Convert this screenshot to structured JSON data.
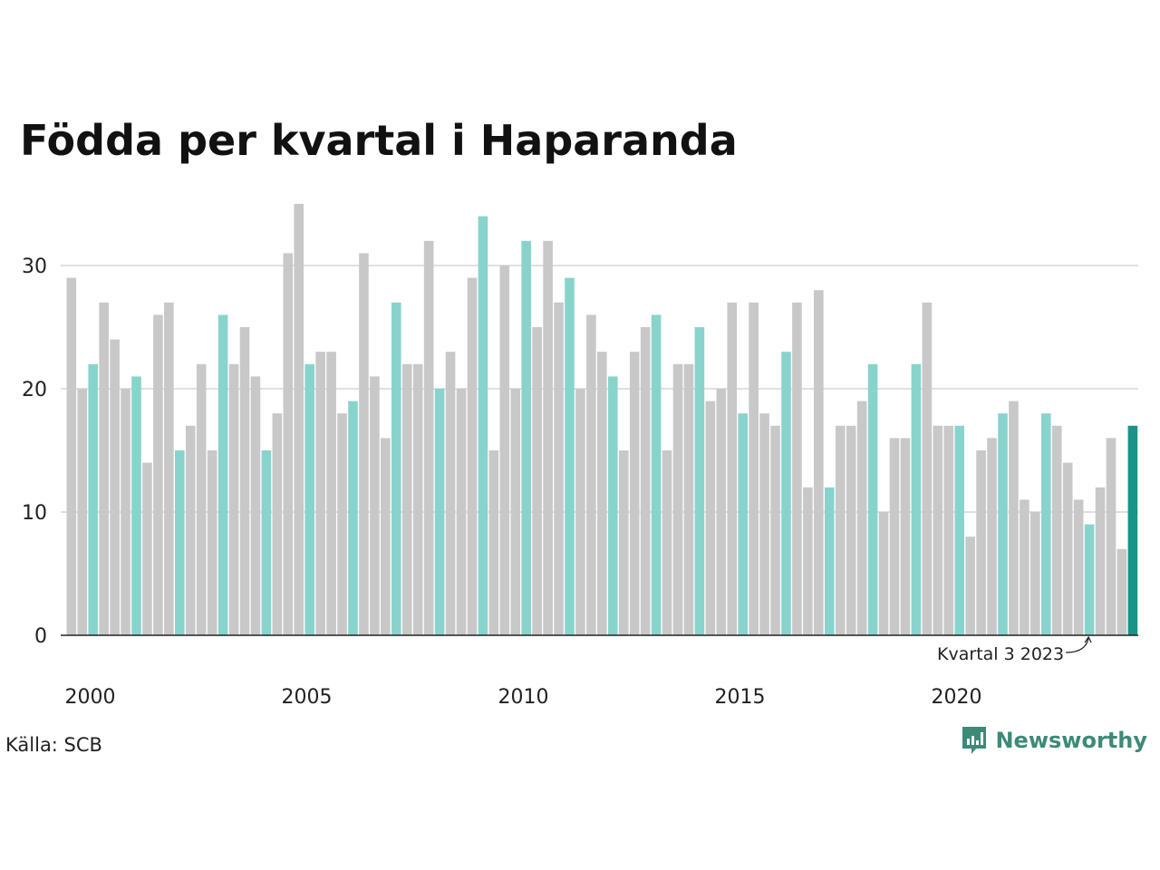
{
  "title": "Födda per kvartal i Haparanda",
  "source": "Källa: SCB",
  "brand": {
    "name": "Newsworthy",
    "color": "#3d8a79",
    "icon": "bar-chart-speech-icon"
  },
  "colors": {
    "other": "#c8c8c8",
    "q3": "#88d4cc",
    "latest": "#1a9486",
    "grid": "#e0e0e0",
    "axis": "#222222"
  },
  "chart_data": {
    "type": "bar",
    "xlabel": "",
    "ylabel": "",
    "ylim": [
      0,
      35
    ],
    "yticks": [
      0,
      10,
      20,
      30
    ],
    "xticks": [
      {
        "label": "2000",
        "year": 2000
      },
      {
        "label": "2005",
        "year": 2005
      },
      {
        "label": "2010",
        "year": 2010
      },
      {
        "label": "2015",
        "year": 2015
      },
      {
        "label": "2020",
        "year": 2020
      }
    ],
    "grid": true,
    "first_period": "2000 Q1",
    "highlight_quarter": 3,
    "values": [
      29,
      20,
      22,
      27,
      24,
      20,
      21,
      14,
      26,
      27,
      15,
      17,
      22,
      15,
      26,
      22,
      25,
      21,
      15,
      18,
      31,
      35,
      22,
      23,
      23,
      18,
      19,
      31,
      21,
      16,
      27,
      22,
      22,
      32,
      20,
      23,
      20,
      29,
      34,
      15,
      30,
      20,
      32,
      25,
      32,
      27,
      29,
      20,
      26,
      23,
      21,
      15,
      23,
      25,
      26,
      15,
      22,
      22,
      25,
      19,
      20,
      27,
      18,
      27,
      18,
      17,
      23,
      27,
      12,
      28,
      12,
      17,
      17,
      19,
      22,
      10,
      16,
      16,
      22,
      27,
      17,
      17,
      17,
      8,
      15,
      16,
      18,
      19,
      11,
      10,
      18,
      17,
      14,
      11,
      9,
      12,
      16,
      7,
      17
    ],
    "annotation": {
      "text": "Kvartal 3 2023",
      "index": 94
    }
  }
}
